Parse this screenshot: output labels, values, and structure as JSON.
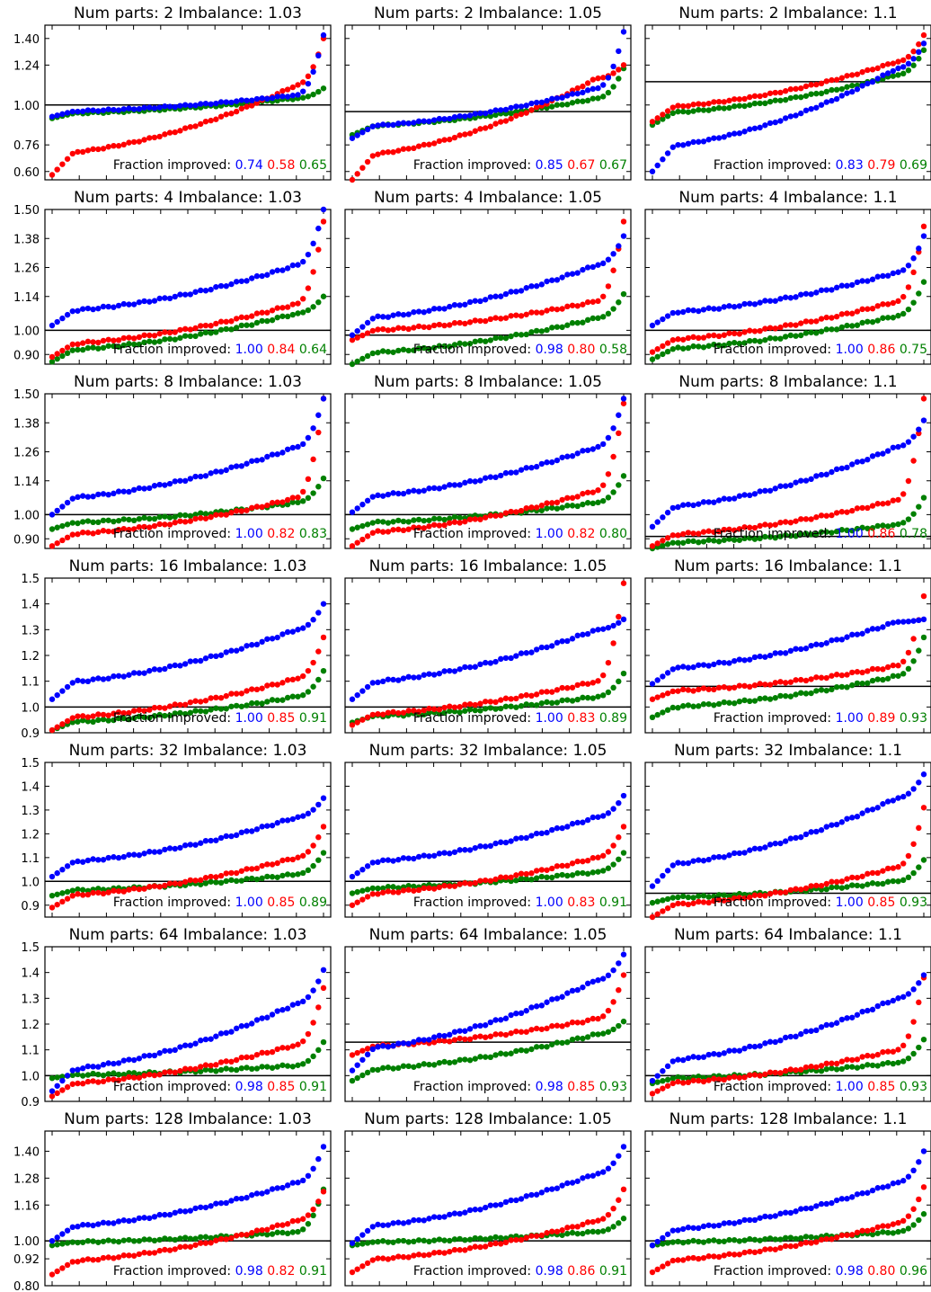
{
  "chart_data": {
    "type": "scatter",
    "grid": false,
    "legend": "none",
    "colors": {
      "blue": "#0000ff",
      "red": "#ff0000",
      "green": "#008000"
    },
    "annotation_label": "Fraction improved:",
    "panels": [
      {
        "title": "Num parts: 2 Imbalance: 1.03",
        "ylim": [
          0.55,
          1.48
        ],
        "yticks": [
          "1.40",
          "1.24",
          "1.00",
          "0.76",
          "0.60"
        ],
        "ytick_values": [
          1.4,
          1.24,
          1.0,
          0.76,
          0.6
        ],
        "baseline": 1.0,
        "fractions": [
          "0.74",
          "0.58",
          "0.65"
        ],
        "blue": {
          "start": 0.93,
          "body": 1.06,
          "end": 1.42
        },
        "red": {
          "start": 0.58,
          "body": 1.12,
          "end": 1.4
        },
        "green": {
          "start": 0.92,
          "body": 1.04,
          "end": 1.1
        }
      },
      {
        "title": "Num parts: 2 Imbalance: 1.05",
        "ylim": [
          0.55,
          1.48
        ],
        "yticks": [],
        "ytick_values": [],
        "baseline": 0.96,
        "fractions": [
          "0.85",
          "0.67",
          "0.67"
        ],
        "blue": {
          "start": 0.8,
          "body": 1.1,
          "end": 1.44
        },
        "red": {
          "start": 0.55,
          "body": 1.16,
          "end": 1.24
        },
        "green": {
          "start": 0.82,
          "body": 1.04,
          "end": 1.22
        }
      },
      {
        "title": "Num parts: 2 Imbalance: 1.1",
        "ylim": [
          0.55,
          1.48
        ],
        "yticks": [],
        "ytick_values": [],
        "baseline": 1.14,
        "fractions": [
          "0.83",
          "0.79",
          "0.69"
        ],
        "blue": {
          "start": 0.6,
          "body": 1.22,
          "end": 1.37
        },
        "red": {
          "start": 0.9,
          "body": 1.26,
          "end": 1.42
        },
        "green": {
          "start": 0.88,
          "body": 1.18,
          "end": 1.33
        }
      },
      {
        "title": "Num parts: 4 Imbalance: 1.03",
        "ylim": [
          0.86,
          1.5
        ],
        "yticks": [
          "1.50",
          "1.38",
          "1.26",
          "1.14",
          "1.00",
          "0.90"
        ],
        "ytick_values": [
          1.5,
          1.38,
          1.26,
          1.14,
          1.0,
          0.9
        ],
        "baseline": 1.0,
        "fractions": [
          "1.00",
          "0.84",
          "0.64"
        ],
        "blue": {
          "start": 1.02,
          "body": 1.27,
          "end": 1.5
        },
        "red": {
          "start": 0.89,
          "body": 1.11,
          "end": 1.45
        },
        "green": {
          "start": 0.87,
          "body": 1.07,
          "end": 1.14
        }
      },
      {
        "title": "Num parts: 4 Imbalance: 1.05",
        "ylim": [
          0.86,
          1.5
        ],
        "yticks": [],
        "ytick_values": [],
        "baseline": 0.98,
        "fractions": [
          "0.98",
          "0.80",
          "0.58"
        ],
        "blue": {
          "start": 0.98,
          "body": 1.27,
          "end": 1.39
        },
        "red": {
          "start": 0.96,
          "body": 1.12,
          "end": 1.45
        },
        "green": {
          "start": 0.86,
          "body": 1.05,
          "end": 1.15
        }
      },
      {
        "title": "Num parts: 4 Imbalance: 1.1",
        "ylim": [
          0.86,
          1.5
        ],
        "yticks": [],
        "ytick_values": [],
        "baseline": 1.0,
        "fractions": [
          "1.00",
          "0.86",
          "0.75"
        ],
        "blue": {
          "start": 1.02,
          "body": 1.24,
          "end": 1.39
        },
        "red": {
          "start": 0.91,
          "body": 1.12,
          "end": 1.43
        },
        "green": {
          "start": 0.88,
          "body": 1.06,
          "end": 1.2
        }
      },
      {
        "title": "Num parts: 8 Imbalance: 1.03",
        "ylim": [
          0.86,
          1.5
        ],
        "yticks": [
          "1.50",
          "1.38",
          "1.26",
          "1.14",
          "1.00",
          "0.90"
        ],
        "ytick_values": [
          1.5,
          1.38,
          1.26,
          1.14,
          1.0,
          0.9
        ],
        "baseline": 1.0,
        "fractions": [
          "1.00",
          "0.82",
          "0.83"
        ],
        "blue": {
          "start": 1.0,
          "body": 1.28,
          "end": 1.48
        },
        "red": {
          "start": 0.87,
          "body": 1.07,
          "end": 1.48
        },
        "green": {
          "start": 0.94,
          "body": 1.05,
          "end": 1.15
        }
      },
      {
        "title": "Num parts: 8 Imbalance: 1.05",
        "ylim": [
          0.86,
          1.5
        ],
        "yticks": [],
        "ytick_values": [],
        "baseline": 1.0,
        "fractions": [
          "1.00",
          "0.82",
          "0.80"
        ],
        "blue": {
          "start": 1.01,
          "body": 1.28,
          "end": 1.48
        },
        "red": {
          "start": 0.87,
          "body": 1.1,
          "end": 1.46
        },
        "green": {
          "start": 0.94,
          "body": 1.05,
          "end": 1.16
        }
      },
      {
        "title": "Num parts: 8 Imbalance: 1.1",
        "ylim": [
          0.86,
          1.5
        ],
        "yticks": [],
        "ytick_values": [],
        "baseline": 0.91,
        "fractions": [
          "1.00",
          "0.86",
          "0.78"
        ],
        "blue": {
          "start": 0.95,
          "body": 1.28,
          "end": 1.39
        },
        "red": {
          "start": 0.87,
          "body": 1.06,
          "end": 1.48
        },
        "green": {
          "start": 0.86,
          "body": 0.96,
          "end": 1.07
        }
      },
      {
        "title": "Num parts: 16 Imbalance: 1.03",
        "ylim": [
          0.9,
          1.5
        ],
        "yticks": [
          "1.5",
          "1.4",
          "1.3",
          "1.2",
          "1.1",
          "1.0",
          "0.9"
        ],
        "ytick_values": [
          1.5,
          1.4,
          1.3,
          1.2,
          1.1,
          1.0,
          0.9
        ],
        "baseline": 1.0,
        "fractions": [
          "1.00",
          "0.85",
          "0.91"
        ],
        "blue": {
          "start": 1.03,
          "body": 1.3,
          "end": 1.4
        },
        "red": {
          "start": 0.91,
          "body": 1.11,
          "end": 1.27
        },
        "green": {
          "start": 0.91,
          "body": 1.04,
          "end": 1.14
        }
      },
      {
        "title": "Num parts: 16 Imbalance: 1.05",
        "ylim": [
          0.9,
          1.5
        ],
        "yticks": [],
        "ytick_values": [],
        "baseline": 1.0,
        "fractions": [
          "1.00",
          "0.83",
          "0.89"
        ],
        "blue": {
          "start": 1.03,
          "body": 1.3,
          "end": 1.34
        },
        "red": {
          "start": 0.93,
          "body": 1.1,
          "end": 1.48
        },
        "green": {
          "start": 0.94,
          "body": 1.04,
          "end": 1.13
        }
      },
      {
        "title": "Num parts: 16 Imbalance: 1.1",
        "ylim": [
          0.9,
          1.5
        ],
        "yticks": [],
        "ytick_values": [],
        "baseline": 1.08,
        "fractions": [
          "1.00",
          "0.89",
          "0.93"
        ],
        "blue": {
          "start": 1.09,
          "body": 1.33,
          "end": 1.34
        },
        "red": {
          "start": 1.03,
          "body": 1.16,
          "end": 1.43
        },
        "green": {
          "start": 0.96,
          "body": 1.12,
          "end": 1.27
        }
      },
      {
        "title": "Num parts: 32 Imbalance: 1.03",
        "ylim": [
          0.85,
          1.5
        ],
        "yticks": [
          "1.5",
          "1.4",
          "1.3",
          "1.2",
          "1.1",
          "1.0",
          "0.9"
        ],
        "ytick_values": [
          1.5,
          1.4,
          1.3,
          1.2,
          1.1,
          1.0,
          0.9
        ],
        "baseline": 1.0,
        "fractions": [
          "1.00",
          "0.85",
          "0.89"
        ],
        "blue": {
          "start": 1.02,
          "body": 1.27,
          "end": 1.35
        },
        "red": {
          "start": 0.89,
          "body": 1.1,
          "end": 1.23
        },
        "green": {
          "start": 0.94,
          "body": 1.03,
          "end": 1.12
        }
      },
      {
        "title": "Num parts: 32 Imbalance: 1.05",
        "ylim": [
          0.85,
          1.5
        ],
        "yticks": [],
        "ytick_values": [],
        "baseline": 1.0,
        "fractions": [
          "1.00",
          "0.83",
          "0.91"
        ],
        "blue": {
          "start": 1.02,
          "body": 1.27,
          "end": 1.36
        },
        "red": {
          "start": 0.9,
          "body": 1.1,
          "end": 1.23
        },
        "green": {
          "start": 0.95,
          "body": 1.04,
          "end": 1.12
        }
      },
      {
        "title": "Num parts: 32 Imbalance: 1.1",
        "ylim": [
          0.85,
          1.5
        ],
        "yticks": [],
        "ytick_values": [],
        "baseline": 0.95,
        "fractions": [
          "1.00",
          "0.85",
          "0.93"
        ],
        "blue": {
          "start": 0.98,
          "body": 1.35,
          "end": 1.45
        },
        "red": {
          "start": 0.85,
          "body": 1.06,
          "end": 1.31
        },
        "green": {
          "start": 0.91,
          "body": 1.0,
          "end": 1.09
        }
      },
      {
        "title": "Num parts: 64 Imbalance: 1.03",
        "ylim": [
          0.9,
          1.5
        ],
        "yticks": [
          "1.5",
          "1.4",
          "1.3",
          "1.2",
          "1.1",
          "1.0",
          "0.9"
        ],
        "ytick_values": [
          1.5,
          1.4,
          1.3,
          1.2,
          1.1,
          1.0,
          0.9
        ],
        "baseline": 1.0,
        "fractions": [
          "0.98",
          "0.85",
          "0.91"
        ],
        "blue": {
          "start": 0.94,
          "body": 1.28,
          "end": 1.41
        },
        "red": {
          "start": 0.92,
          "body": 1.12,
          "end": 1.34
        },
        "green": {
          "start": 0.99,
          "body": 1.04,
          "end": 1.13
        }
      },
      {
        "title": "Num parts: 64 Imbalance: 1.05",
        "ylim": [
          0.9,
          1.5
        ],
        "yticks": [],
        "ytick_values": [],
        "baseline": 1.13,
        "fractions": [
          "0.98",
          "0.85",
          "0.93"
        ],
        "blue": {
          "start": 1.02,
          "body": 1.37,
          "end": 1.47
        },
        "red": {
          "start": 1.08,
          "body": 1.22,
          "end": 1.39
        },
        "green": {
          "start": 0.98,
          "body": 1.16,
          "end": 1.21
        }
      },
      {
        "title": "Num parts: 64 Imbalance: 1.1",
        "ylim": [
          0.9,
          1.5
        ],
        "yticks": [],
        "ytick_values": [],
        "baseline": 1.0,
        "fractions": [
          "1.00",
          "0.85",
          "0.93"
        ],
        "blue": {
          "start": 0.98,
          "body": 1.3,
          "end": 1.39
        },
        "red": {
          "start": 0.93,
          "body": 1.1,
          "end": 1.38
        },
        "green": {
          "start": 0.97,
          "body": 1.05,
          "end": 1.14
        }
      },
      {
        "title": "Num parts: 128 Imbalance: 1.03",
        "ylim": [
          0.8,
          1.49
        ],
        "yticks": [
          "1.40",
          "1.28",
          "1.16",
          "1.00",
          "0.92",
          "0.80"
        ],
        "ytick_values": [
          1.4,
          1.28,
          1.16,
          1.0,
          0.92,
          0.8
        ],
        "baseline": 1.0,
        "fractions": [
          "0.98",
          "0.82",
          "0.91"
        ],
        "blue": {
          "start": 1.0,
          "body": 1.26,
          "end": 1.42
        },
        "red": {
          "start": 0.85,
          "body": 1.09,
          "end": 1.22
        },
        "green": {
          "start": 0.98,
          "body": 1.04,
          "end": 1.23
        }
      },
      {
        "title": "Num parts: 128 Imbalance: 1.05",
        "ylim": [
          0.8,
          1.49
        ],
        "yticks": [],
        "ytick_values": [],
        "baseline": 1.0,
        "fractions": [
          "0.98",
          "0.86",
          "0.91"
        ],
        "blue": {
          "start": 0.99,
          "body": 1.3,
          "end": 1.42
        },
        "red": {
          "start": 0.86,
          "body": 1.09,
          "end": 1.23
        },
        "green": {
          "start": 0.98,
          "body": 1.04,
          "end": 1.1
        }
      },
      {
        "title": "Num parts: 128 Imbalance: 1.1",
        "ylim": [
          0.8,
          1.49
        ],
        "yticks": [],
        "ytick_values": [],
        "baseline": 1.0,
        "fractions": [
          "0.98",
          "0.80",
          "0.96"
        ],
        "blue": {
          "start": 0.98,
          "body": 1.26,
          "end": 1.4
        },
        "red": {
          "start": 0.86,
          "body": 1.08,
          "end": 1.24
        },
        "green": {
          "start": 0.98,
          "body": 1.04,
          "end": 1.12
        }
      }
    ]
  }
}
